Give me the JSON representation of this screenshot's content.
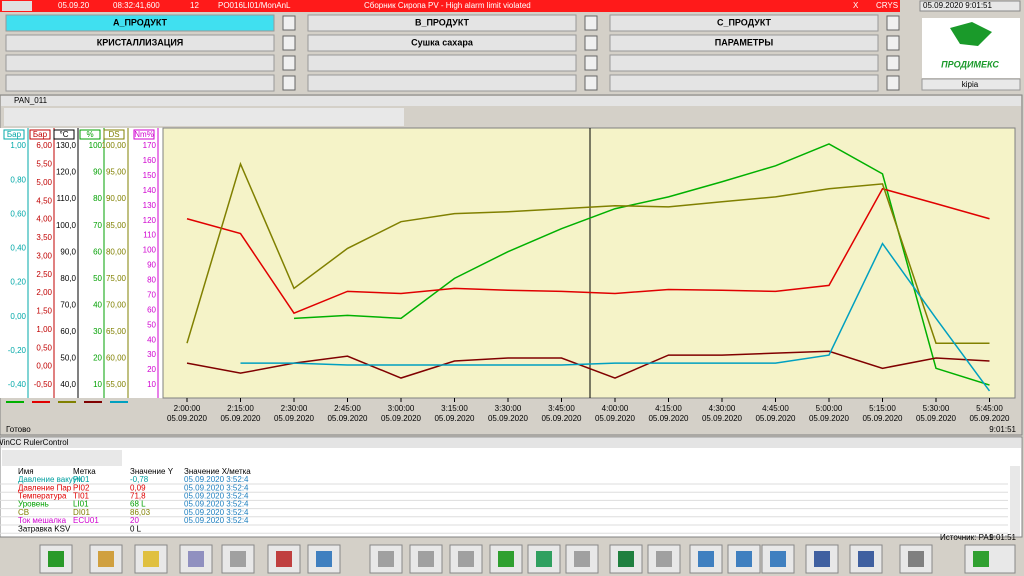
{
  "alarm_bar": {
    "date": "05.09.20",
    "time": "08:32:41,600",
    "count": "12",
    "tag": "PO016LI01/MonAnL",
    "message": "Сборник Сиропа PV - High alarm limit violated",
    "close": "X",
    "area": "CRYS",
    "clock": "05.09.2020 9:01:51"
  },
  "nav": {
    "rows": [
      [
        "А_ПРОДУКТ",
        "В_ПРОДУКТ",
        "С_ПРОДУКТ"
      ],
      [
        "КРИСТАЛЛИЗАЦИЯ",
        "Сушка сахара",
        "ПАРАМЕТРЫ"
      ]
    ]
  },
  "logo": {
    "name": "ПРОДИМЕКС",
    "user": "kipia"
  },
  "trend_window": {
    "title": "PAN_011",
    "status": "Готово",
    "time": "9:01:51",
    "axes": [
      {
        "unit": "Бар",
        "color": "#00a8a8",
        "ticks": [
          "1,00",
          "0,80",
          "0,60",
          "0,40",
          "0,20",
          "0,00",
          "-0,20",
          "-0,40"
        ]
      },
      {
        "unit": "Бар",
        "color": "#c00000",
        "ticks": [
          "6,00",
          "5,50",
          "5,00",
          "4,50",
          "4,00",
          "3,50",
          "3,00",
          "2,50",
          "2,00",
          "1,50",
          "1,00",
          "0,50",
          "0,00",
          "-0,50"
        ]
      },
      {
        "unit": "°C",
        "color": "#000000",
        "ticks": [
          "130,0",
          "120,0",
          "110,0",
          "100,0",
          "90,0",
          "80,0",
          "70,0",
          "60,0",
          "50,0",
          "40,0"
        ]
      },
      {
        "unit": "%",
        "color": "#00a000",
        "ticks": [
          "100",
          "90",
          "80",
          "70",
          "60",
          "50",
          "40",
          "30",
          "20",
          "10"
        ]
      },
      {
        "unit": "DS",
        "color": "#808000",
        "ticks": [
          "100,00",
          "95,00",
          "90,00",
          "85,00",
          "80,00",
          "75,00",
          "70,00",
          "65,00",
          "60,00",
          "55,00"
        ]
      },
      {
        "unit": "Nm%",
        "color": "#d000d0",
        "ticks": [
          "170",
          "160",
          "150",
          "140",
          "130",
          "120",
          "110",
          "100",
          "90",
          "80",
          "70",
          "60",
          "50",
          "40",
          "30",
          "20",
          "10"
        ]
      }
    ],
    "time_axis": [
      {
        "time": "2:00:00",
        "date": "05.09.2020"
      },
      {
        "time": "2:15:00",
        "date": "05.09.2020"
      },
      {
        "time": "2:30:00",
        "date": "05.09.2020"
      },
      {
        "time": "2:45:00",
        "date": "05.09.2020"
      },
      {
        "time": "3:00:00",
        "date": "05.09.2020"
      },
      {
        "time": "3:15:00",
        "date": "05.09.2020"
      },
      {
        "time": "3:30:00",
        "date": "05.09.2020"
      },
      {
        "time": "3:45:00",
        "date": "05.09.2020"
      },
      {
        "time": "4:00:00",
        "date": "05.09.2020"
      },
      {
        "time": "4:15:00",
        "date": "05.09.2020"
      },
      {
        "time": "4:30:00",
        "date": "05.09.2020"
      },
      {
        "time": "4:45:00",
        "date": "05.09.2020"
      },
      {
        "time": "5:00:00",
        "date": "05.09.2020"
      },
      {
        "time": "5:15:00",
        "date": "05.09.2020"
      },
      {
        "time": "5:30:00",
        "date": "05.09.2020"
      },
      {
        "time": "5:45:00",
        "date": "05.09.2020"
      }
    ],
    "ylim": [
      0,
      100
    ],
    "series": [
      {
        "color": "#00b000",
        "values": [
          null,
          null,
          29.5,
          30.6,
          29.5,
          44.3,
          54.2,
          62.7,
          70.1,
          74.5,
          80.1,
          86,
          94.1,
          83,
          11,
          4.8
        ]
      },
      {
        "color": "#e00000",
        "values": [
          66.4,
          60.9,
          31.4,
          39.5,
          38.7,
          40.6,
          39.9,
          39.5,
          38.7,
          40.2,
          39.9,
          39.5,
          41.7,
          77.5,
          72,
          66.4
        ]
      },
      {
        "color": "#808000",
        "values": [
          20.3,
          86.7,
          40.6,
          55.4,
          65.3,
          68.3,
          69,
          70.1,
          71.2,
          70.8,
          72.7,
          74.5,
          77.5,
          79.3,
          20.3,
          20.3
        ]
      },
      {
        "color": "#800000",
        "values": [
          12.9,
          9.2,
          12.9,
          15.5,
          7.4,
          13.7,
          14.8,
          14.8,
          7.4,
          15.9,
          15.9,
          16.6,
          17.3,
          11,
          14.8,
          13.7
        ]
      },
      {
        "color": "#00a0c0",
        "values": [
          null,
          12.9,
          12.9,
          12.2,
          12.2,
          12.2,
          12.2,
          12.2,
          12.9,
          12.9,
          12.9,
          12.9,
          15.9,
          57.2,
          29.5,
          2.6
        ]
      }
    ]
  },
  "ruler": {
    "title": "WinCC RulerControl",
    "columns": [
      "Имя",
      "Метка",
      "Значение Y",
      "Значение X/метка"
    ],
    "rows": [
      {
        "color": "#00a0a0",
        "cells": [
          "Давление вакуум",
          "PI01",
          "-0,78",
          "05.09.2020 3:52:4"
        ]
      },
      {
        "color": "#e00000",
        "cells": [
          "Давление Пар",
          "PI02",
          "0,09",
          "05.09.2020 3:52:4"
        ]
      },
      {
        "color": "#e00000",
        "cells": [
          "Температура",
          "TI01",
          "71,8",
          "05.09.2020 3:52:4"
        ]
      },
      {
        "color": "#00a000",
        "cells": [
          "Уровень",
          "LI01",
          "68 L",
          "05.09.2020 3:52:4"
        ]
      },
      {
        "color": "#808000",
        "cells": [
          "СВ",
          "DI01",
          "86,03",
          "05.09.2020 3:52:4"
        ]
      },
      {
        "color": "#d000d0",
        "cells": [
          "Ток мешалка",
          "ECU01",
          "20",
          "05.09.2020 3:52:4"
        ]
      },
      {
        "color": "#000000",
        "cells": [
          "Затравка KSV",
          "",
          "0 L",
          ""
        ]
      }
    ],
    "source": "Источник: PA1",
    "time": "9:01:51"
  }
}
